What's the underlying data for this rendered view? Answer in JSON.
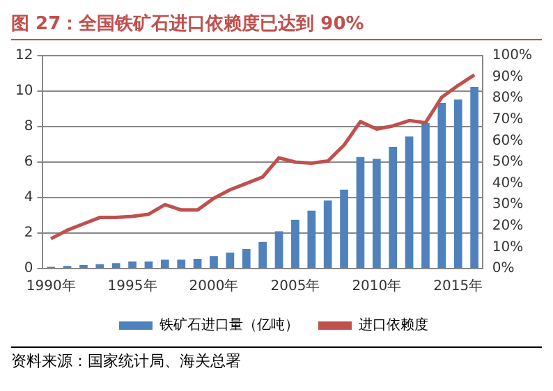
{
  "chart_data": {
    "type": "bar",
    "title": "图 27：全国铁矿石进口依赖度已达到 90%",
    "categories": [
      "1990年",
      null,
      null,
      null,
      null,
      "1995年",
      null,
      null,
      null,
      null,
      "2000年",
      null,
      null,
      null,
      null,
      "2005年",
      null,
      null,
      null,
      null,
      "2010年",
      null,
      null,
      null,
      null,
      "2015年",
      null
    ],
    "series": [
      {
        "name": "铁矿石进口量（亿吨）",
        "color": "#4f81bd",
        "values": [
          0.1,
          0.15,
          0.2,
          0.25,
          0.3,
          0.4,
          0.4,
          0.5,
          0.5,
          0.55,
          0.7,
          0.9,
          1.1,
          1.5,
          2.1,
          2.75,
          3.26,
          3.83,
          4.44,
          6.28,
          6.19,
          6.86,
          7.44,
          8.2,
          9.33,
          9.53,
          10.24
        ]
      },
      {
        "name": "进口依赖度",
        "type": "line",
        "axis": "y2",
        "color": "#c0504d",
        "values": [
          14,
          18,
          21,
          24,
          24,
          24.5,
          25.5,
          30,
          27.5,
          27.5,
          33,
          37,
          40,
          43,
          52,
          50,
          49.5,
          50.5,
          58,
          69,
          65.5,
          67,
          69.5,
          68.5,
          80.5,
          86,
          91
        ]
      }
    ],
    "ylim": [
      0,
      12
    ],
    "yticks": [
      0,
      2,
      4,
      6,
      8,
      10,
      12
    ],
    "y2lim": [
      0,
      100
    ],
    "y2ticks": [
      {
        "value": 0,
        "label": "0%"
      },
      {
        "value": 10,
        "label": "10%"
      },
      {
        "value": 20,
        "label": "20%"
      },
      {
        "value": 30,
        "label": "30%"
      },
      {
        "value": 40,
        "label": "40%"
      },
      {
        "value": 50,
        "label": "50%"
      },
      {
        "value": 60,
        "label": "60%"
      },
      {
        "value": 70,
        "label": "70%"
      },
      {
        "value": 80,
        "label": "80%"
      },
      {
        "value": 90,
        "label": "90%"
      },
      {
        "value": 100,
        "label": "100%"
      }
    ],
    "grid": "y",
    "legend": "bottom",
    "annotations": [
      "资料来源：国家统计局、海关总署"
    ]
  }
}
